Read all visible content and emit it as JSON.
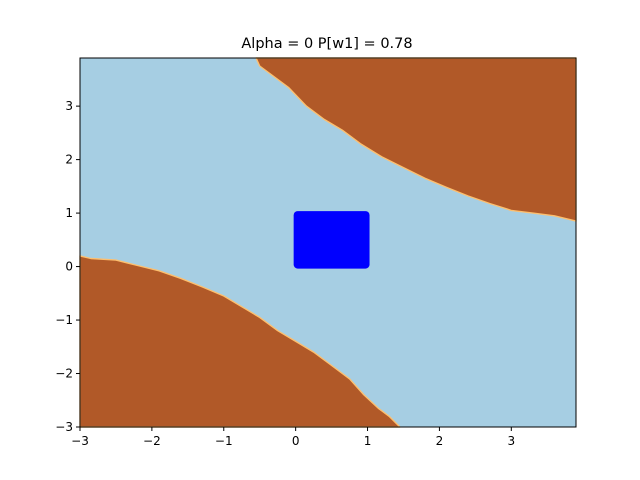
{
  "chart_data": {
    "type": "heatmap",
    "title": "Alpha = 0 P[w1] = 0.78",
    "xlabel": "",
    "ylabel": "",
    "xlim": [
      -3,
      3.9
    ],
    "ylim": [
      -3,
      3.9
    ],
    "xticks": [
      -3,
      -2,
      -1,
      0,
      1,
      2,
      3
    ],
    "yticks": [
      -3,
      -2,
      -1,
      0,
      1,
      2,
      3
    ],
    "xtick_labels": [
      "−3",
      "−2",
      "−1",
      "0",
      "1",
      "2",
      "3"
    ],
    "ytick_labels": [
      "−3",
      "−2",
      "−1",
      "0",
      "1",
      "2",
      "3"
    ],
    "grid": false,
    "background_class_color": "#a6cee3",
    "regions": [
      {
        "class": "upper-right",
        "color": "#b15928",
        "boundary": [
          [
            -0.55,
            3.9
          ],
          [
            -0.5,
            3.75
          ],
          [
            -0.35,
            3.6
          ],
          [
            -0.1,
            3.35
          ],
          [
            0.15,
            3.0
          ],
          [
            0.4,
            2.75
          ],
          [
            0.65,
            2.55
          ],
          [
            0.9,
            2.3
          ],
          [
            1.2,
            2.05
          ],
          [
            1.5,
            1.85
          ],
          [
            1.8,
            1.65
          ],
          [
            2.1,
            1.48
          ],
          [
            2.4,
            1.32
          ],
          [
            2.7,
            1.18
          ],
          [
            3.0,
            1.05
          ],
          [
            3.3,
            1.0
          ],
          [
            3.6,
            0.95
          ],
          [
            3.9,
            0.85
          ]
        ]
      },
      {
        "class": "lower-left",
        "color": "#b15928",
        "boundary": [
          [
            -3.0,
            0.2
          ],
          [
            -2.85,
            0.15
          ],
          [
            -2.5,
            0.12
          ],
          [
            -2.2,
            0.02
          ],
          [
            -1.9,
            -0.08
          ],
          [
            -1.6,
            -0.22
          ],
          [
            -1.3,
            -0.38
          ],
          [
            -1.0,
            -0.55
          ],
          [
            -0.75,
            -0.75
          ],
          [
            -0.5,
            -0.95
          ],
          [
            -0.25,
            -1.2
          ],
          [
            0.0,
            -1.4
          ],
          [
            0.25,
            -1.6
          ],
          [
            0.5,
            -1.85
          ],
          [
            0.75,
            -2.1
          ],
          [
            0.95,
            -2.4
          ],
          [
            1.15,
            -2.65
          ],
          [
            1.3,
            -2.8
          ],
          [
            1.45,
            -3.0
          ]
        ]
      }
    ],
    "series": [
      {
        "kind": "filled-square",
        "color": "#0000ff",
        "x_range": [
          0.0,
          1.0
        ],
        "y_range": [
          0.0,
          1.0
        ]
      }
    ]
  }
}
